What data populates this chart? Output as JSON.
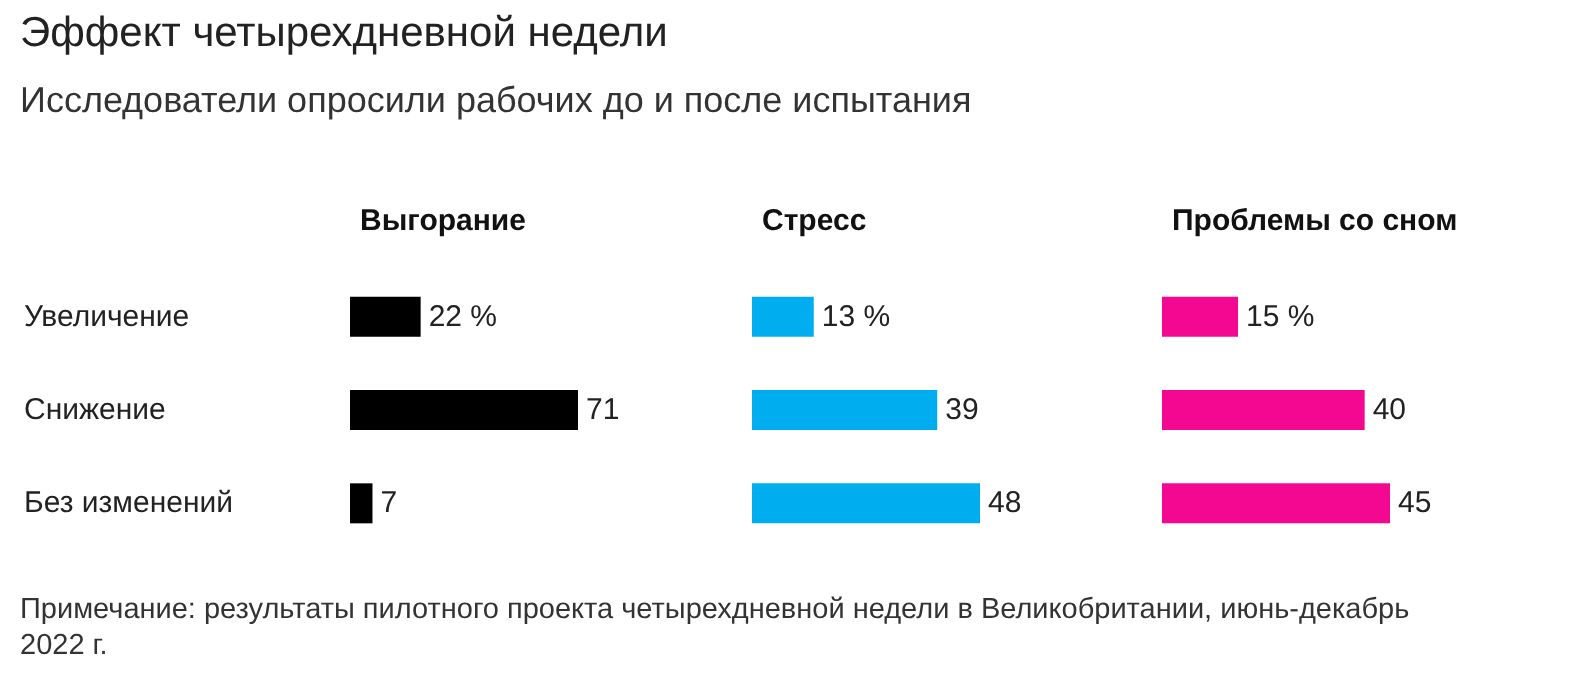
{
  "chart_data": [
    {
      "type": "other",
      "title": "Эффект четырехдневной недели",
      "subtitle": "Исследователи опросили рабочих до и после испытания",
      "annotations": [
        "Примечание: результаты пилотного проекта четырехдневной недели в Великобритании, июнь-декабрь 2022 г."
      ]
    },
    {
      "type": "bar",
      "orientation": "horizontal",
      "title": "Выгорание",
      "categories": [
        "Увеличение",
        "Снижение",
        "Без изменений"
      ],
      "values": [
        22,
        71,
        7
      ],
      "value_labels": [
        "22 %",
        "71",
        "7"
      ],
      "color": "#000000",
      "tick_labels": "y"
    },
    {
      "type": "bar",
      "orientation": "horizontal",
      "title": "Стресс",
      "categories": [
        null,
        null,
        null
      ],
      "values": [
        13,
        39,
        48
      ],
      "value_labels": [
        "13 %",
        "39",
        "48"
      ],
      "color": "#00aeef",
      "tick_labels": false
    },
    {
      "type": "bar",
      "orientation": "horizontal",
      "title": "Проблемы со сном",
      "categories": [
        null,
        null,
        null
      ],
      "values": [
        15,
        40,
        45
      ],
      "value_labels": [
        "15 %",
        "40",
        "45"
      ],
      "color": "#f50891",
      "tick_labels": false
    }
  ]
}
